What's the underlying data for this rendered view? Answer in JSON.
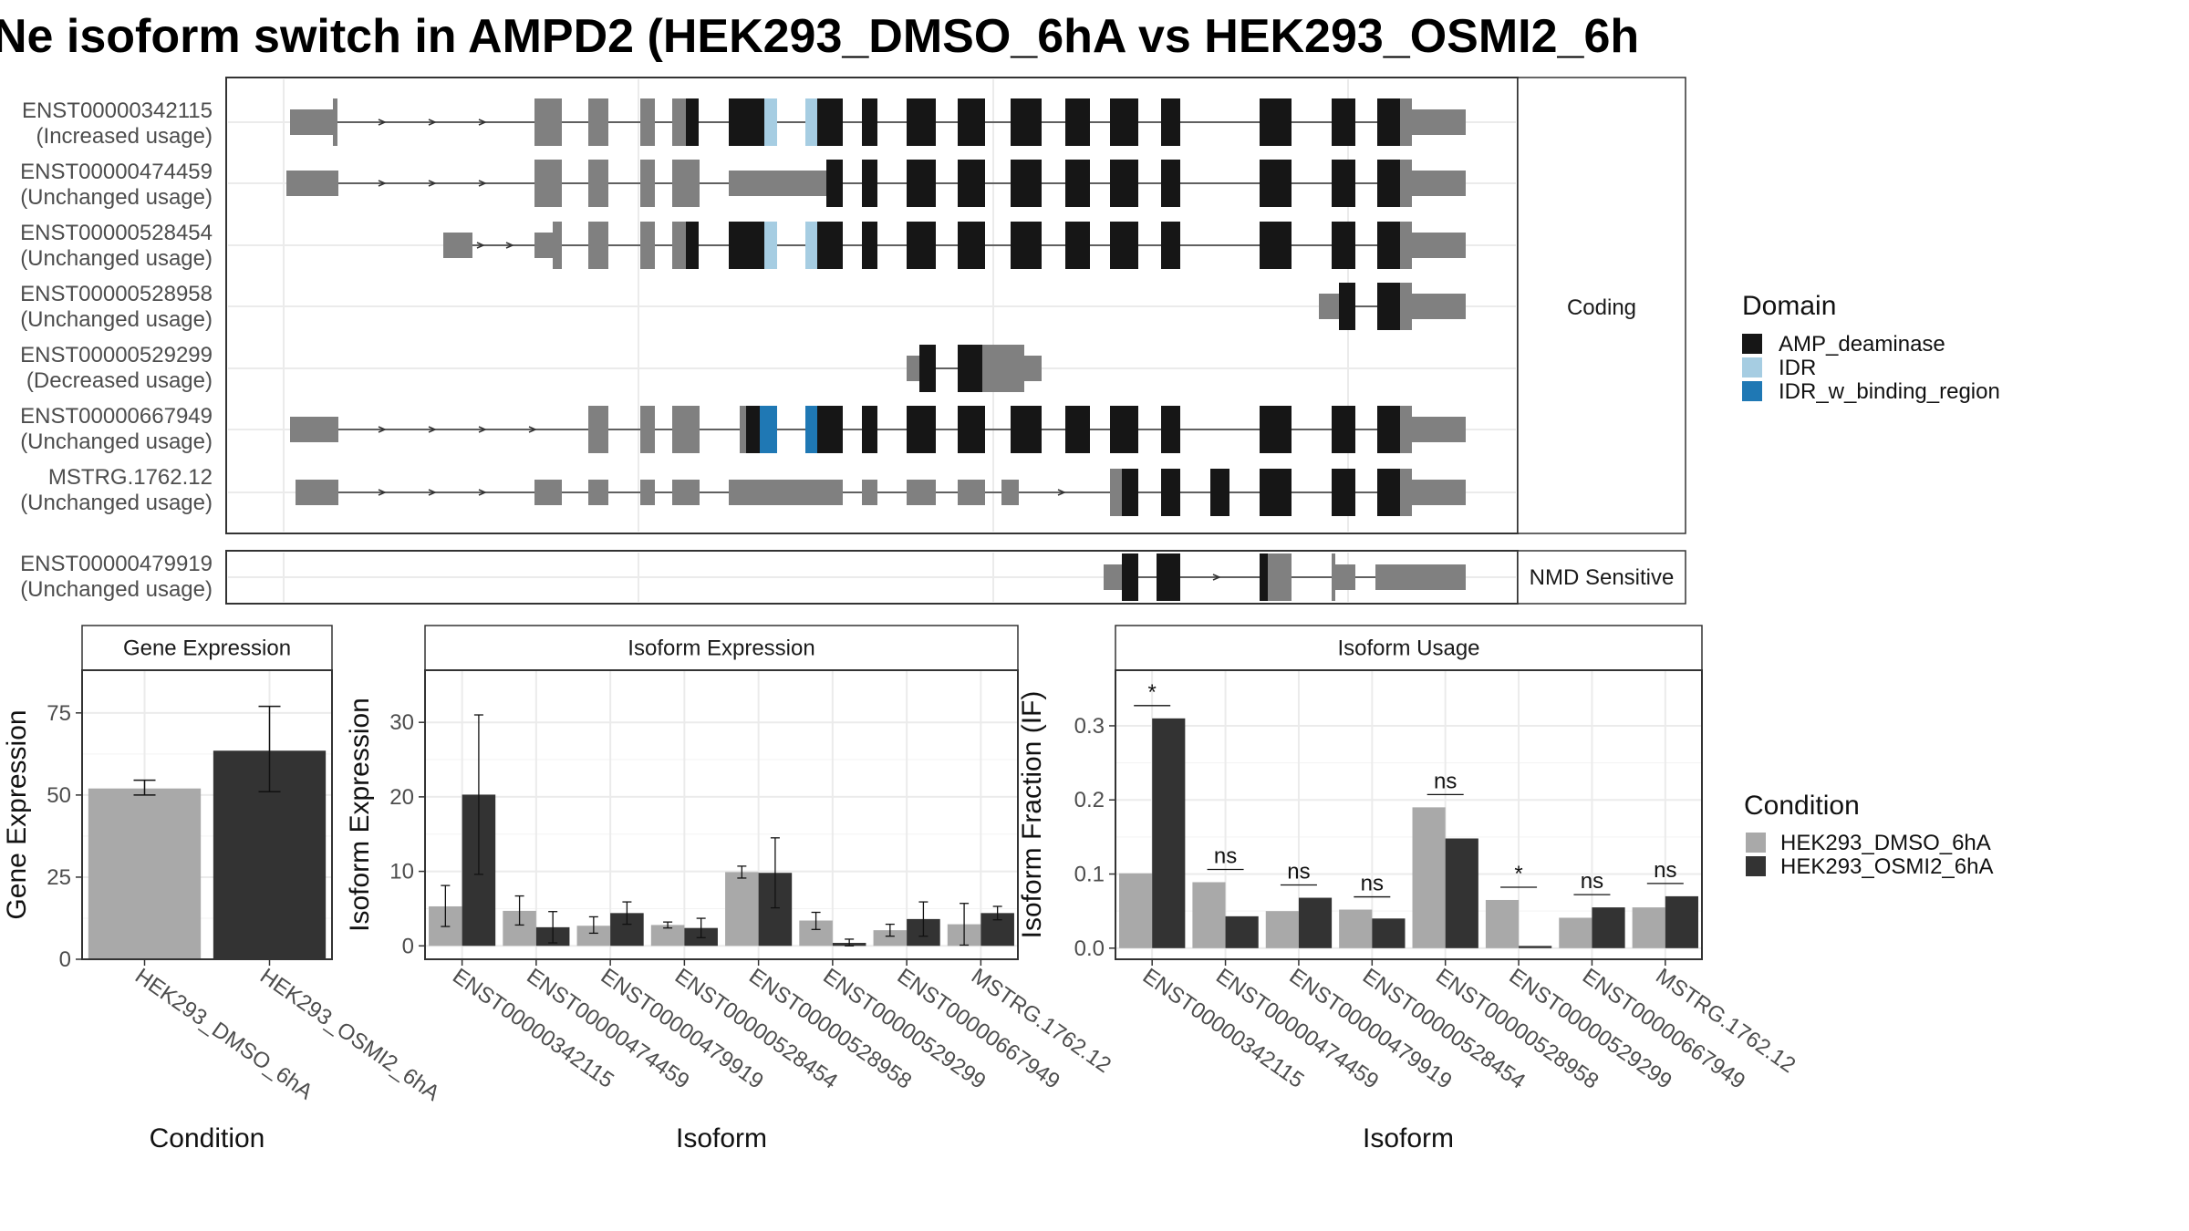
{
  "title": "Ne isoform switch in AMPD2 (HEK293_DMSO_6hA vs HEK293_OSMI2_6h",
  "colors": {
    "AMP_deaminase": "#161616",
    "IDR": "#a6cde2",
    "IDR_w_binding_region": "#1f78b4",
    "noncoding": "#808080",
    "dmso": "#a9a9a9",
    "osmi": "#333333",
    "grid": "#ebebeb"
  },
  "transcripts": {
    "facets": [
      "Coding",
      "NMD Sensitive"
    ],
    "coding": [
      {
        "id": "ENST00000342115",
        "usage": "(Increased usage)"
      },
      {
        "id": "ENST00000474459",
        "usage": "(Unchanged usage)"
      },
      {
        "id": "ENST00000528454",
        "usage": "(Unchanged usage)"
      },
      {
        "id": "ENST00000528958",
        "usage": "(Unchanged usage)"
      },
      {
        "id": "ENST00000529299",
        "usage": "(Decreased usage)"
      },
      {
        "id": "ENST00000667949",
        "usage": "(Unchanged usage)"
      },
      {
        "id": "MSTRG.1762.12",
        "usage": "(Unchanged usage)"
      }
    ],
    "nmd": [
      {
        "id": "ENST00000479919",
        "usage": "(Unchanged usage)"
      }
    ]
  },
  "domain_legend": {
    "title": "Domain",
    "items": [
      "AMP_deaminase",
      "IDR",
      "IDR_w_binding_region"
    ]
  },
  "condition_legend": {
    "title": "Condition",
    "items": [
      "HEK293_DMSO_6hA",
      "HEK293_OSMI2_6hA"
    ]
  },
  "chart_data": [
    {
      "type": "bar",
      "title": "Gene Expression",
      "xlabel": "Condition",
      "ylabel": "Gene Expression",
      "categories": [
        "HEK293_DMSO_6hA",
        "HEK293_OSMI2_6hA"
      ],
      "values": [
        52,
        63.5
      ],
      "error_low": [
        50,
        51
      ],
      "error_high": [
        54.5,
        77
      ],
      "ylim": [
        0,
        88
      ],
      "yticks": [
        0,
        25,
        50,
        75
      ]
    },
    {
      "type": "bar",
      "title": "Isoform Expression",
      "xlabel": "Isoform",
      "ylabel": "Isoform Expression",
      "categories": [
        "ENST00000342115",
        "ENST00000474459",
        "ENST00000479919",
        "ENST00000528454",
        "ENST00000528958",
        "ENST00000529299",
        "ENST00000667949",
        "MSTRG.1762.12"
      ],
      "series": [
        {
          "name": "HEK293_DMSO_6hA",
          "values": [
            5.3,
            4.7,
            2.7,
            2.8,
            9.9,
            3.4,
            2.1,
            2.9
          ],
          "error_low": [
            2.6,
            2.8,
            1.7,
            2.4,
            9.1,
            2.2,
            1.3,
            0.1
          ],
          "error_high": [
            8.1,
            6.7,
            3.9,
            3.2,
            10.7,
            4.5,
            2.9,
            5.7
          ]
        },
        {
          "name": "HEK293_OSMI2_6hA",
          "values": [
            20.3,
            2.5,
            4.4,
            2.4,
            9.8,
            0.4,
            3.6,
            4.4
          ],
          "error_low": [
            9.6,
            0.4,
            2.9,
            1.1,
            5.1,
            0.0,
            1.3,
            3.5
          ],
          "error_high": [
            31.0,
            4.6,
            5.9,
            3.7,
            14.5,
            0.9,
            5.9,
            5.3
          ]
        }
      ],
      "ylim": [
        -1.8,
        37
      ],
      "yticks": [
        0,
        10,
        20,
        30
      ]
    },
    {
      "type": "bar",
      "title": "Isoform Usage",
      "xlabel": "Isoform",
      "ylabel": "Isoform Fraction (IF)",
      "categories": [
        "ENST00000342115",
        "ENST00000474459",
        "ENST00000479919",
        "ENST00000528454",
        "ENST00000528958",
        "ENST00000529299",
        "ENST00000667949",
        "MSTRG.1762.12"
      ],
      "series": [
        {
          "name": "HEK293_DMSO_6hA",
          "values": [
            0.101,
            0.089,
            0.05,
            0.052,
            0.19,
            0.065,
            0.041,
            0.055
          ]
        },
        {
          "name": "HEK293_OSMI2_6hA",
          "values": [
            0.31,
            0.043,
            0.068,
            0.04,
            0.148,
            0.003,
            0.055,
            0.07
          ]
        }
      ],
      "significance": [
        "*",
        "ns",
        "ns",
        "ns",
        "ns",
        "*",
        "ns",
        "ns"
      ],
      "ylim": [
        -0.015,
        0.375
      ],
      "yticks": [
        "0.0",
        "0.1",
        "0.2",
        "0.3"
      ]
    }
  ]
}
